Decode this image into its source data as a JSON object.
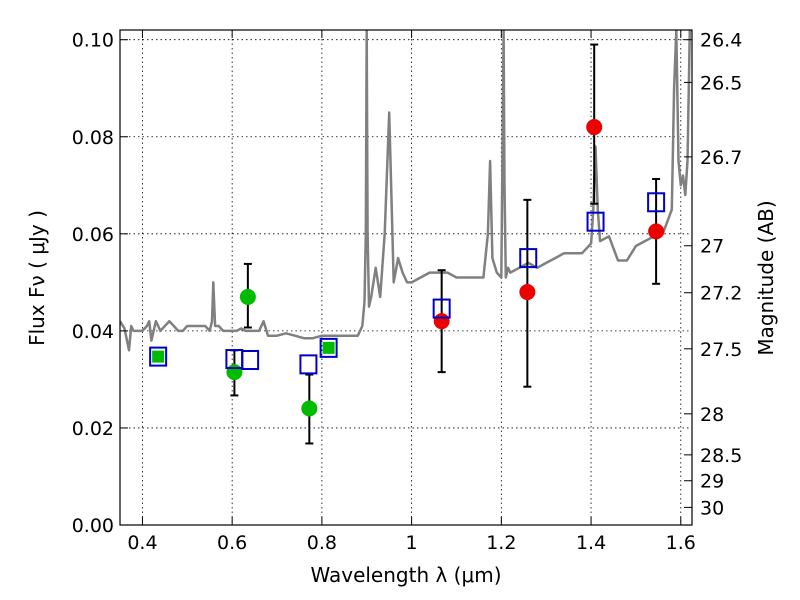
{
  "chart_data": {
    "type": "scatter",
    "xlabel": "Wavelength  λ (μm)",
    "ylabel": "Flux  Fν ( μJy )",
    "y2label": "Magnitude (AB)",
    "xlim": [
      0.35,
      1.625
    ],
    "ylim": [
      0.0,
      0.102
    ],
    "grid": true,
    "xticks": [
      0.4,
      0.6,
      0.8,
      1.0,
      1.2,
      1.4,
      1.6
    ],
    "xtick_labels": [
      "0.4",
      "0.6",
      "0.8",
      "1",
      "1.2",
      "1.4",
      "1.6"
    ],
    "yticks": [
      0.0,
      0.02,
      0.04,
      0.06,
      0.08,
      0.1
    ],
    "ytick_labels": [
      "0.00",
      "0.02",
      "0.04",
      "0.06",
      "0.08",
      "0.10"
    ],
    "y2ticks": [
      26.4,
      26.5,
      26.7,
      27.0,
      27.2,
      27.5,
      28.0,
      28.5,
      29.0,
      30.0
    ],
    "y2tick_labels": [
      "26.4",
      "26.5",
      "26.7",
      "27",
      "27.2",
      "27.5",
      "28",
      "28.5",
      "29",
      "30"
    ],
    "colors": {
      "model": "#808080",
      "optical_points": "#00bb00",
      "nir_points": "#ee0000",
      "model_boxes": "#0000cc",
      "errorbar": "#000000"
    },
    "series": [
      {
        "marker": "circle",
        "color": "#00bb00",
        "x": [
          0.605,
          0.635,
          0.772
        ],
        "y": [
          0.0315,
          0.047,
          0.024
        ],
        "yerr_low": [
          0.0048,
          0.0063,
          0.0072
        ],
        "yerr_high": [
          0.0045,
          0.0068,
          0.007
        ]
      },
      {
        "marker": "circle",
        "color": "#ee0000",
        "x": [
          1.067,
          1.258,
          1.407,
          1.545
        ],
        "y": [
          0.042,
          0.048,
          0.082,
          0.0605
        ],
        "yerr_low": [
          0.0105,
          0.0195,
          0.0158,
          0.0108
        ],
        "yerr_high": [
          0.0105,
          0.019,
          0.017,
          0.0108
        ]
      },
      {
        "marker": "square",
        "color": "#0000cc",
        "x": [
          0.435,
          0.605,
          0.64,
          0.77,
          0.815,
          1.067,
          1.26,
          1.41,
          1.545
        ],
        "y": [
          0.0347,
          0.0342,
          0.034,
          0.0331,
          0.0365,
          0.0446,
          0.055,
          0.0625,
          0.0665
        ],
        "inner_fill": [
          "#00bb00",
          "",
          "",
          "",
          "#00bb00",
          "",
          "",
          "",
          ""
        ]
      },
      {
        "type": "line",
        "color": "#808080",
        "x": [
          0.35,
          0.36,
          0.37,
          0.375,
          0.38,
          0.39,
          0.4,
          0.41,
          0.415,
          0.42,
          0.43,
          0.44,
          0.45,
          0.46,
          0.47,
          0.48,
          0.49,
          0.5,
          0.51,
          0.52,
          0.53,
          0.54,
          0.55,
          0.555,
          0.558,
          0.562,
          0.57,
          0.58,
          0.59,
          0.6,
          0.61,
          0.62,
          0.63,
          0.64,
          0.65,
          0.66,
          0.67,
          0.68,
          0.69,
          0.7,
          0.72,
          0.74,
          0.76,
          0.78,
          0.8,
          0.82,
          0.84,
          0.86,
          0.88,
          0.89,
          0.895,
          0.898,
          0.9,
          0.902,
          0.905,
          0.91,
          0.92,
          0.93,
          0.94,
          0.95,
          0.96,
          0.97,
          0.98,
          0.99,
          1.0,
          1.02,
          1.04,
          1.06,
          1.08,
          1.1,
          1.12,
          1.14,
          1.16,
          1.17,
          1.175,
          1.18,
          1.19,
          1.2,
          1.202,
          1.205,
          1.207,
          1.21,
          1.215,
          1.22,
          1.24,
          1.26,
          1.28,
          1.3,
          1.32,
          1.34,
          1.36,
          1.38,
          1.4,
          1.405,
          1.41,
          1.415,
          1.42,
          1.44,
          1.46,
          1.48,
          1.5,
          1.52,
          1.54,
          1.56,
          1.57,
          1.58,
          1.585,
          1.59,
          1.595,
          1.6,
          1.605,
          1.61,
          1.615,
          1.62,
          1.625
        ],
        "y": [
          0.042,
          0.0405,
          0.036,
          0.041,
          0.04,
          0.04,
          0.04,
          0.041,
          0.042,
          0.038,
          0.042,
          0.04,
          0.041,
          0.042,
          0.041,
          0.04,
          0.04,
          0.041,
          0.041,
          0.041,
          0.041,
          0.041,
          0.04,
          0.042,
          0.05,
          0.041,
          0.041,
          0.04,
          0.04,
          0.04,
          0.04,
          0.0405,
          0.04,
          0.04,
          0.04,
          0.04,
          0.042,
          0.039,
          0.039,
          0.039,
          0.0395,
          0.039,
          0.0385,
          0.0385,
          0.039,
          0.039,
          0.039,
          0.039,
          0.039,
          0.041,
          0.046,
          0.06,
          0.102,
          0.06,
          0.045,
          0.047,
          0.053,
          0.047,
          0.06,
          0.085,
          0.05,
          0.055,
          0.052,
          0.05,
          0.05,
          0.051,
          0.052,
          0.052,
          0.052,
          0.051,
          0.051,
          0.051,
          0.051,
          0.06,
          0.075,
          0.055,
          0.052,
          0.051,
          0.07,
          0.102,
          0.07,
          0.051,
          0.053,
          0.052,
          0.053,
          0.054,
          0.053,
          0.054,
          0.055,
          0.056,
          0.056,
          0.056,
          0.058,
          0.065,
          0.078,
          0.065,
          0.0585,
          0.0595,
          0.0545,
          0.0545,
          0.0575,
          0.0585,
          0.0595,
          0.06,
          0.0625,
          0.065,
          0.09,
          0.102,
          0.075,
          0.07,
          0.072,
          0.068,
          0.075,
          0.102,
          0.102
        ]
      }
    ]
  }
}
